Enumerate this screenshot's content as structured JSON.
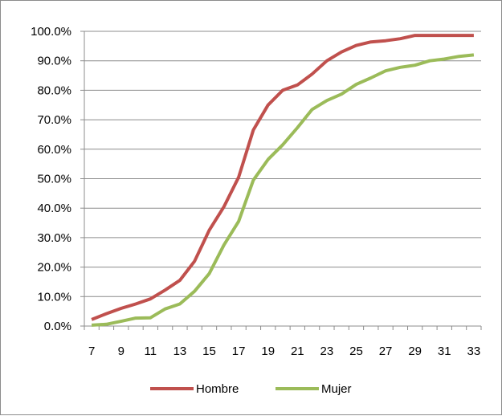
{
  "chart_data": {
    "type": "line",
    "title": "",
    "xlabel": "",
    "ylabel": "",
    "x": [
      7,
      8,
      9,
      10,
      11,
      12,
      13,
      14,
      15,
      16,
      17,
      18,
      19,
      20,
      21,
      22,
      23,
      24,
      25,
      26,
      27,
      28,
      29,
      30,
      31,
      32,
      33
    ],
    "x_tick_labels": [
      "7",
      "9",
      "11",
      "13",
      "15",
      "17",
      "19",
      "21",
      "23",
      "25",
      "27",
      "29",
      "31",
      "33"
    ],
    "y_tick_labels": [
      "0.0%",
      "10.0%",
      "20.0%",
      "30.0%",
      "40.0%",
      "50.0%",
      "60.0%",
      "70.0%",
      "80.0%",
      "90.0%",
      "100.0%"
    ],
    "ylim": [
      0,
      100
    ],
    "y_unit": "%",
    "grid": "horizontal",
    "legend_position": "bottom",
    "series": [
      {
        "name": "Hombre",
        "color": "#c0504d",
        "values": [
          2.2,
          4.2,
          6.0,
          7.5,
          9.2,
          12.2,
          15.5,
          22.0,
          32.5,
          40.5,
          50.5,
          66.5,
          75.0,
          80.0,
          81.8,
          85.5,
          90.0,
          93.0,
          95.2,
          96.4,
          96.8,
          97.5,
          98.6,
          98.6,
          98.6,
          98.6,
          98.6
        ]
      },
      {
        "name": "Mujer",
        "color": "#9bbb59",
        "values": [
          0.3,
          0.6,
          1.6,
          2.7,
          2.8,
          5.8,
          7.5,
          11.8,
          17.8,
          27.5,
          35.5,
          49.5,
          56.5,
          61.5,
          67.3,
          73.5,
          76.5,
          78.7,
          82.0,
          84.2,
          86.6,
          87.8,
          88.5,
          90.0,
          90.6,
          91.5,
          92.0
        ]
      }
    ]
  }
}
